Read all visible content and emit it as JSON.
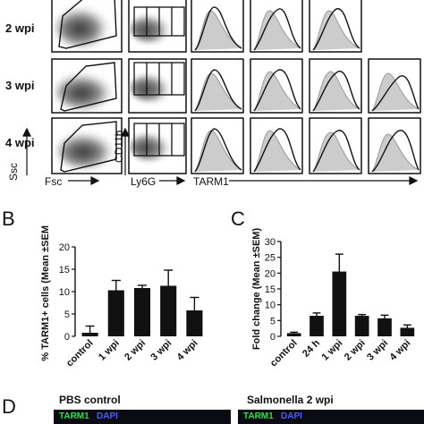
{
  "panel_a": {
    "row_labels": [
      "2 wpi",
      "3 wpi",
      "4 wpi"
    ],
    "x_axis_labels": {
      "scatter1": "Fsc",
      "scatter2": "Ly6G",
      "histogram": "TARM1"
    },
    "y_axis_labels": {
      "scatter1": "Ssc",
      "scatter2": "CD11b"
    }
  },
  "panel_b": {
    "letter": "B",
    "chart_data": {
      "type": "bar",
      "categories": [
        "control",
        "1 wpi",
        "2 wpi",
        "3 wpi",
        "4 wpi"
      ],
      "values": [
        0.8,
        10.3,
        10.8,
        11.3,
        5.8
      ],
      "errors": [
        1.5,
        2.2,
        0.6,
        3.5,
        2.9
      ],
      "ylabel": "% TARM1+ cells (Mean ±SEM)",
      "ylim": [
        0,
        20
      ],
      "yticks": [
        "0",
        "5",
        "10",
        "15",
        "20"
      ]
    }
  },
  "panel_c": {
    "letter": "C",
    "chart_data": {
      "type": "bar",
      "categories": [
        "control",
        "24 h",
        "1 wpi",
        "2 wpi",
        "3 wpi",
        "4 wpi"
      ],
      "values": [
        1.0,
        6.5,
        20.5,
        6.5,
        5.7,
        2.7
      ],
      "errors": [
        0.3,
        0.9,
        5.5,
        0.4,
        1.0,
        0.9
      ],
      "ylabel": "Fold change (Mean ±SEM)",
      "ylim": [
        0,
        30
      ],
      "yticks": [
        "0",
        "5",
        "10",
        "15",
        "20",
        "25",
        "30"
      ]
    }
  },
  "panel_d": {
    "letter": "D",
    "left_title": "PBS control",
    "right_title": "Salmonella 2 wpi",
    "stain_marker": "TARM1",
    "stain_dapi": "DAPI"
  }
}
